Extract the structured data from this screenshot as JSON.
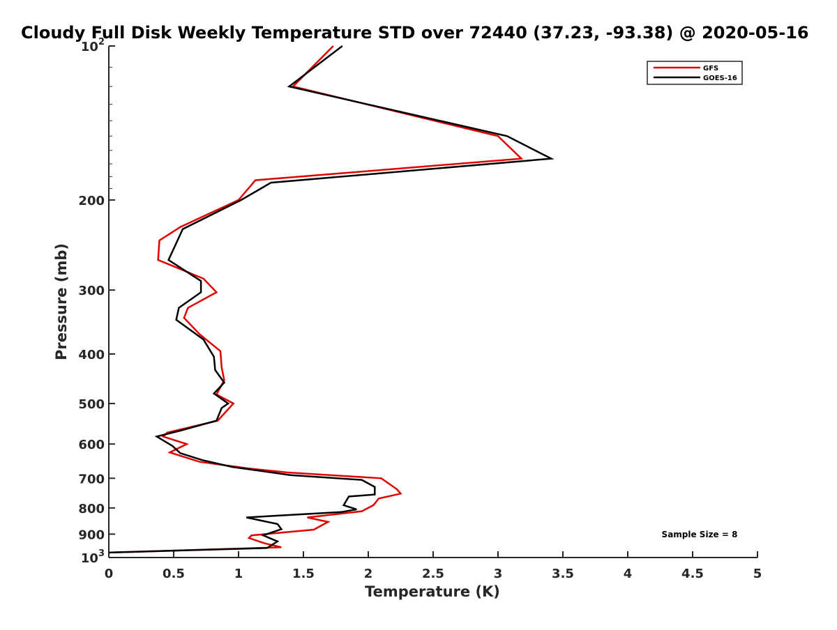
{
  "chart_data": {
    "type": "line",
    "title": "Cloudy Full Disk Weekly Temperature STD over 72440 (37.23, -93.38) @ 2020-05-16",
    "xlabel": "Temperature (K)",
    "ylabel": "Pressure (mb)",
    "xlim": [
      0,
      5
    ],
    "ylim": [
      100,
      1000
    ],
    "yscale": "log",
    "y_reversed": true,
    "grid": false,
    "legend_position": "top-right",
    "x_ticks": [
      0,
      0.5,
      1,
      1.5,
      2,
      2.5,
      3,
      3.5,
      4,
      4.5,
      5
    ],
    "x_tick_labels": [
      "0",
      "0.5",
      "1",
      "1.5",
      "2",
      "2.5",
      "3",
      "3.5",
      "4",
      "4.5",
      "5"
    ],
    "y_ticks": [
      {
        "value": 100,
        "base": "10",
        "exp": "2"
      },
      {
        "value": 200,
        "label": "200"
      },
      {
        "value": 300,
        "label": "300"
      },
      {
        "value": 400,
        "label": "400"
      },
      {
        "value": 500,
        "label": "500"
      },
      {
        "value": 600,
        "label": "600"
      },
      {
        "value": 700,
        "label": "700"
      },
      {
        "value": 800,
        "label": "800"
      },
      {
        "value": 900,
        "label": "900"
      },
      {
        "value": 1000,
        "base": "10",
        "exp": "3"
      }
    ],
    "annotation": "Sample Size = 8",
    "series": [
      {
        "name": "GFS",
        "color": "#e00000",
        "points": [
          [
            1.73,
            100
          ],
          [
            1.42,
            120
          ],
          [
            3.0,
            150
          ],
          [
            3.18,
            166
          ],
          [
            1.13,
            183
          ],
          [
            1.0,
            200
          ],
          [
            0.55,
            226
          ],
          [
            0.39,
            240
          ],
          [
            0.38,
            262
          ],
          [
            0.73,
            285
          ],
          [
            0.83,
            303
          ],
          [
            0.61,
            325
          ],
          [
            0.58,
            340
          ],
          [
            0.7,
            366
          ],
          [
            0.86,
            395
          ],
          [
            0.87,
            425
          ],
          [
            0.89,
            450
          ],
          [
            0.83,
            480
          ],
          [
            0.96,
            500
          ],
          [
            0.84,
            540
          ],
          [
            0.45,
            570
          ],
          [
            0.42,
            580
          ],
          [
            0.6,
            600
          ],
          [
            0.47,
            623
          ],
          [
            0.7,
            650
          ],
          [
            1.08,
            670
          ],
          [
            1.38,
            682
          ],
          [
            2.1,
            700
          ],
          [
            2.22,
            735
          ],
          [
            2.25,
            750
          ],
          [
            2.08,
            767
          ],
          [
            2.04,
            790
          ],
          [
            1.95,
            812
          ],
          [
            1.53,
            835
          ],
          [
            1.69,
            852
          ],
          [
            1.58,
            882
          ],
          [
            1.1,
            905
          ],
          [
            1.08,
            916
          ],
          [
            1.2,
            938
          ],
          [
            1.33,
            955
          ],
          [
            0.0,
            978
          ]
        ]
      },
      {
        "name": "GOES-16",
        "color": "#000000",
        "points": [
          [
            1.8,
            100
          ],
          [
            1.39,
            120
          ],
          [
            3.07,
            150
          ],
          [
            3.41,
            166
          ],
          [
            1.25,
            185
          ],
          [
            1.02,
            200
          ],
          [
            0.57,
            228
          ],
          [
            0.46,
            262
          ],
          [
            0.71,
            288
          ],
          [
            0.71,
            303
          ],
          [
            0.54,
            325
          ],
          [
            0.52,
            343
          ],
          [
            0.73,
            375
          ],
          [
            0.81,
            405
          ],
          [
            0.82,
            430
          ],
          [
            0.89,
            455
          ],
          [
            0.81,
            478
          ],
          [
            0.92,
            500
          ],
          [
            0.87,
            510
          ],
          [
            0.83,
            540
          ],
          [
            0.55,
            565
          ],
          [
            0.37,
            580
          ],
          [
            0.49,
            605
          ],
          [
            0.55,
            625
          ],
          [
            0.72,
            645
          ],
          [
            0.95,
            665
          ],
          [
            1.4,
            690
          ],
          [
            1.95,
            705
          ],
          [
            2.05,
            728
          ],
          [
            2.05,
            753
          ],
          [
            1.85,
            760
          ],
          [
            1.81,
            790
          ],
          [
            1.91,
            805
          ],
          [
            1.79,
            815
          ],
          [
            1.06,
            835
          ],
          [
            1.3,
            860
          ],
          [
            1.33,
            880
          ],
          [
            1.19,
            905
          ],
          [
            1.3,
            930
          ],
          [
            1.22,
            958
          ],
          [
            0.0,
            978
          ]
        ]
      }
    ]
  }
}
